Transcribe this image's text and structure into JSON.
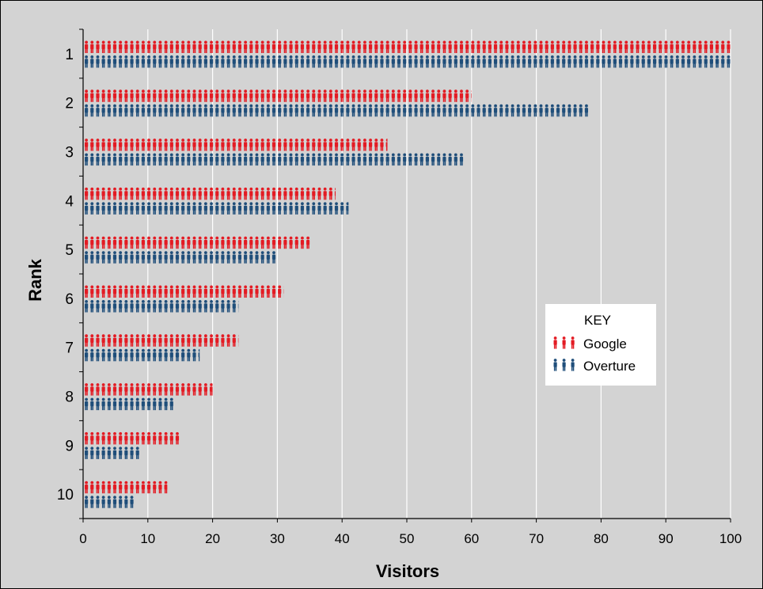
{
  "chart_data": {
    "type": "bar",
    "orientation": "horizontal",
    "mark_style": "person-pictograms",
    "xlabel": "Visitors",
    "ylabel": "Rank",
    "xlim": [
      0,
      100
    ],
    "xticks": [
      0,
      10,
      20,
      30,
      40,
      50,
      60,
      70,
      80,
      90,
      100
    ],
    "grid": "vertical gridlines",
    "categories": [
      "1",
      "2",
      "3",
      "4",
      "5",
      "6",
      "7",
      "8",
      "9",
      "10"
    ],
    "series": [
      {
        "name": "Google",
        "color": "#e31b23",
        "values": [
          100,
          60,
          47,
          39,
          35,
          31,
          24,
          20,
          15,
          13
        ]
      },
      {
        "name": "Overture",
        "color": "#1f4e7a",
        "values": [
          100,
          78,
          59,
          41,
          30,
          24,
          18,
          14,
          9,
          8
        ]
      }
    ],
    "legend": {
      "title": "KEY",
      "position": "right-middle"
    },
    "background_color": "#d3d3d3"
  }
}
